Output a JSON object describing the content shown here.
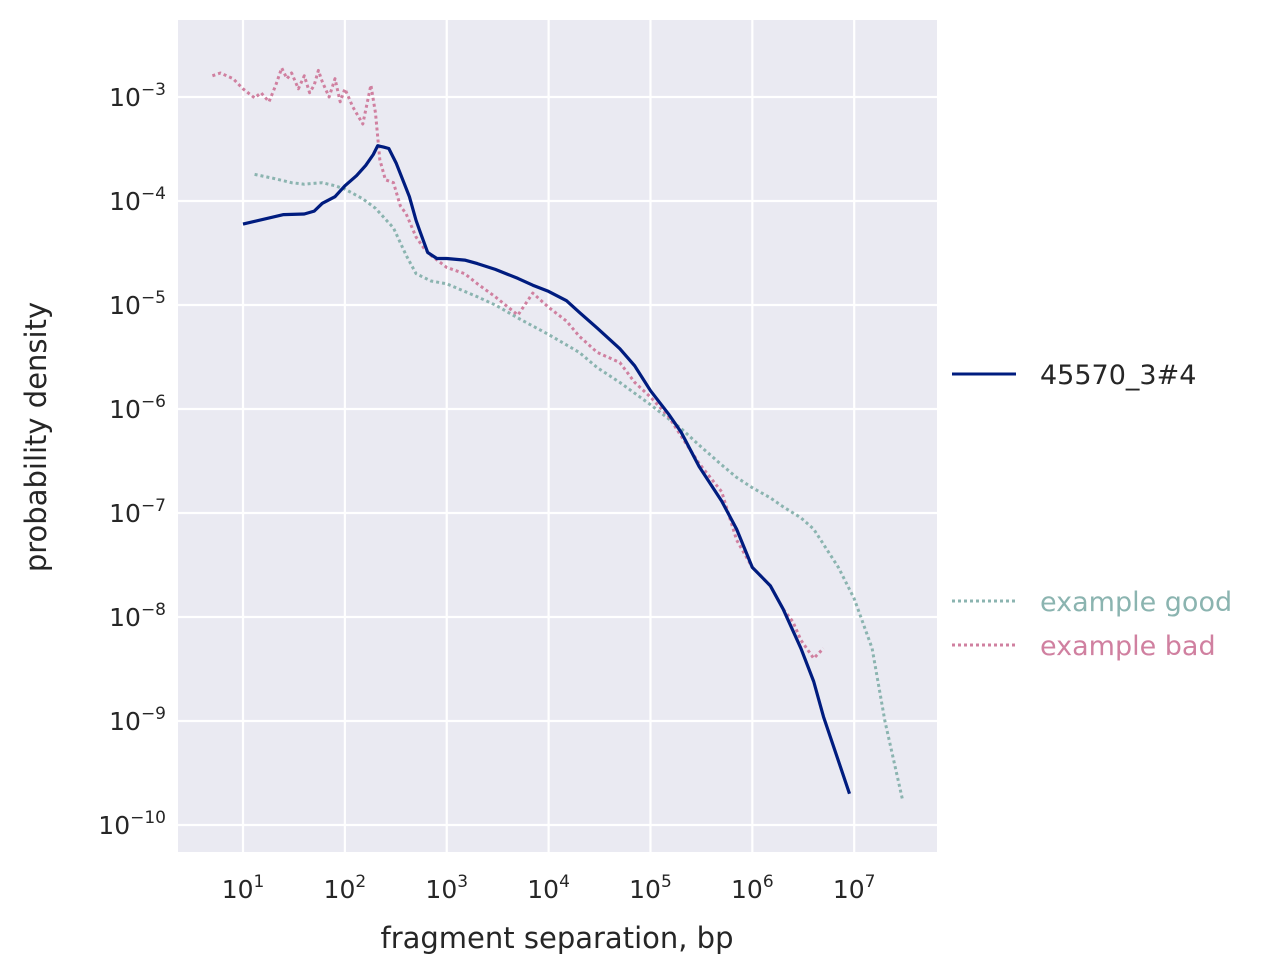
{
  "chart_data": {
    "type": "line",
    "xlabel": "fragment separation, bp",
    "ylabel": "probability density",
    "xscale": "log",
    "yscale": "log",
    "xlim": [
      2.3,
      65000000
    ],
    "ylim": [
      5.5e-11,
      0.0055
    ],
    "grid": true,
    "x_tick_labels": [
      "10",
      "10",
      "10",
      "10",
      "10",
      "10",
      "10"
    ],
    "x_tick_exponents": [
      "1",
      "2",
      "3",
      "4",
      "5",
      "6",
      "7"
    ],
    "y_tick_labels": [
      "10",
      "10",
      "10",
      "10",
      "10",
      "10",
      "10",
      "10"
    ],
    "y_tick_exponents": [
      "−3",
      "−4",
      "−5",
      "−6",
      "−7",
      "−8",
      "−9",
      "−10"
    ],
    "x_ticks": [
      10,
      100,
      1000,
      10000,
      100000,
      1000000,
      10000000
    ],
    "y_ticks": [
      0.001,
      0.0001,
      1e-05,
      1e-06,
      1e-07,
      1e-08,
      1e-09,
      1e-10
    ],
    "colors": {
      "background": "#eaeaf2",
      "grid": "#ffffff",
      "sample": "#001c7f",
      "good": "#8bb4b0",
      "bad": "#d080a0"
    },
    "legend": {
      "placement": "right",
      "sample_label": "45570_3#4",
      "good_label": "example good",
      "bad_label": "example bad"
    },
    "series": [
      {
        "name": "45570_3#4",
        "style": "solid",
        "color": "#001c7f",
        "x": [
          10,
          25,
          40,
          50,
          60,
          80,
          100,
          130,
          160,
          190,
          210,
          240,
          270,
          320,
          380,
          430,
          500,
          550,
          650,
          800,
          1000,
          1500,
          2000,
          3000,
          5000,
          7000,
          10000,
          15000,
          20000,
          30000,
          50000,
          70000,
          100000,
          150000,
          200000,
          300000,
          500000,
          700000,
          1000000,
          1500000,
          2000000,
          3000000,
          4000000,
          5000000,
          9000000
        ],
        "y": [
          6e-05,
          7.4e-05,
          7.5e-05,
          8e-05,
          9.5e-05,
          0.00011,
          0.00014,
          0.000175,
          0.00022,
          0.00028,
          0.00034,
          0.00033,
          0.00032,
          0.00023,
          0.00015,
          0.00011,
          6.5e-05,
          5e-05,
          3.2e-05,
          2.8e-05,
          2.8e-05,
          2.7e-05,
          2.5e-05,
          2.2e-05,
          1.8e-05,
          1.55e-05,
          1.35e-05,
          1.1e-05,
          8.5e-06,
          6e-06,
          3.8e-06,
          2.6e-06,
          1.5e-06,
          9e-07,
          6e-07,
          2.8e-07,
          1.3e-07,
          7e-08,
          3e-08,
          2e-08,
          1.2e-08,
          5e-09,
          2.4e-09,
          1.1e-09,
          2e-10
        ]
      },
      {
        "name": "example good",
        "style": "dotted",
        "color": "#8bb4b0",
        "x": [
          13,
          20,
          30,
          40,
          60,
          80,
          100,
          150,
          200,
          300,
          400,
          500,
          700,
          1000,
          2000,
          3000,
          5000,
          10000,
          20000,
          30000,
          50000,
          100000,
          200000,
          300000,
          500000,
          700000,
          1000000,
          1500000,
          2000000,
          3000000,
          4000000,
          5000000,
          7000000,
          10000000,
          15000000,
          20000000,
          30000000
        ],
        "y": [
          0.00018,
          0.000165,
          0.00015,
          0.000145,
          0.00015,
          0.00014,
          0.00013,
          0.000105,
          8.5e-05,
          5.5e-05,
          3e-05,
          2e-05,
          1.7e-05,
          1.6e-05,
          1.2e-05,
          1e-05,
          7.5e-06,
          5.2e-06,
          3.5e-06,
          2.5e-06,
          1.8e-06,
          1.1e-06,
          6.5e-07,
          4.5e-07,
          2.9e-07,
          2.2e-07,
          1.75e-07,
          1.4e-07,
          1.15e-07,
          9e-08,
          7e-08,
          5e-08,
          3e-08,
          1.5e-08,
          5e-09,
          1e-09,
          1.7e-10
        ]
      },
      {
        "name": "example bad",
        "style": "dotted",
        "color": "#d080a0",
        "x": [
          5,
          6,
          8,
          10,
          13,
          15,
          18,
          21,
          24,
          27,
          30,
          35,
          40,
          45,
          50,
          55,
          60,
          70,
          80,
          90,
          100,
          120,
          150,
          180,
          200,
          220,
          250,
          300,
          350,
          400,
          500,
          600,
          700,
          1000,
          1500,
          2000,
          3000,
          5000,
          7000,
          10000,
          15000,
          20000,
          30000,
          50000,
          70000,
          100000,
          150000,
          200000,
          300000,
          500000,
          700000,
          1000000,
          1500000,
          2000000,
          2500000,
          3000000,
          4000000,
          5000000
        ],
        "y": [
          0.0016,
          0.0017,
          0.0015,
          0.0012,
          0.00098,
          0.0011,
          0.0009,
          0.0013,
          0.0019,
          0.0015,
          0.0017,
          0.0012,
          0.0016,
          0.0011,
          0.0013,
          0.0018,
          0.0014,
          0.001,
          0.0015,
          0.0009,
          0.0012,
          0.0008,
          0.00055,
          0.0013,
          0.0007,
          0.00025,
          0.00016,
          0.00015,
          9e-05,
          7.5e-05,
          4.5e-05,
          3.5e-05,
          3e-05,
          2.3e-05,
          2e-05,
          1.6e-05,
          1.2e-05,
          8e-06,
          1.3e-05,
          9.5e-06,
          7e-06,
          5e-06,
          3.5e-06,
          2.8e-06,
          1.8e-06,
          1.3e-06,
          8.5e-07,
          5.5e-07,
          3e-07,
          1.6e-07,
          5.5e-08,
          3e-08,
          2e-08,
          1.2e-08,
          9e-09,
          6e-09,
          4e-09,
          5e-09
        ]
      }
    ]
  }
}
